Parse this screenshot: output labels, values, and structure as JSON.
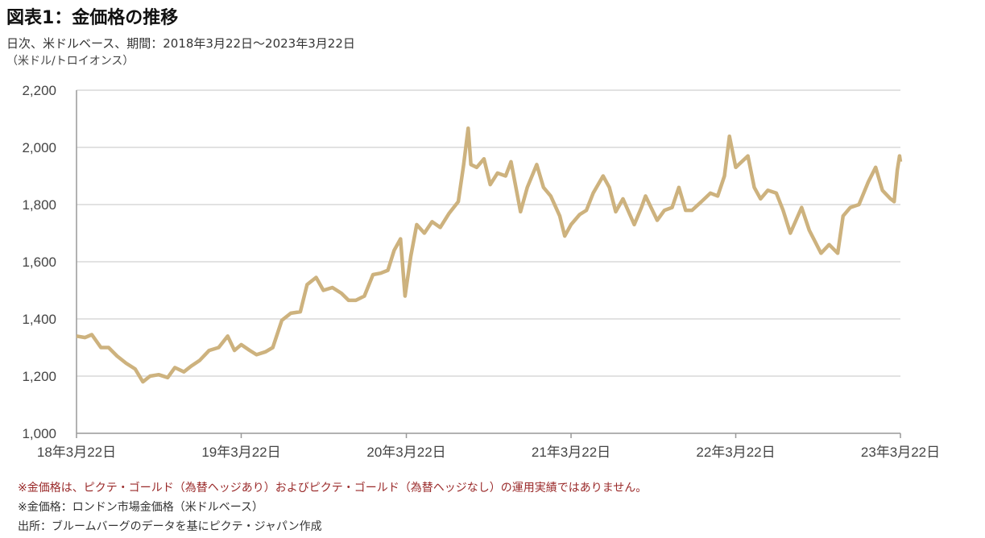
{
  "title": "図表1：金価格の推移",
  "subtitle": "日次、米ドルベース、期間：2018年3月22日～2023年3月22日",
  "unit": "（米ドル/トロイオンス）",
  "notes": [
    "※金価格は、ピクテ・ゴールド（為替ヘッジあり）およびピクテ・ゴールド（為替ヘッジなし）の運用実績ではありません。",
    "※金価格：ロンドン市場金価格（米ドルベース）",
    "出所：ブルームバーグのデータを基にピクテ・ジャパン作成"
  ],
  "colors": {
    "line": "#CDB27E",
    "grid": "#D9D9D9",
    "note_red": "#9A2A2A"
  },
  "chart_data": {
    "type": "line",
    "title": "図表1：金価格の推移",
    "ylabel": "（米ドル/トロイオンス）",
    "ylim": [
      1000,
      2200
    ],
    "yticks": [
      1000,
      1200,
      1400,
      1600,
      1800,
      2000,
      2200
    ],
    "ytick_labels": [
      "1,000",
      "1,200",
      "1,400",
      "1,600",
      "1,800",
      "2,000",
      "2,200"
    ],
    "xlim": [
      "2018-03-22",
      "2023-03-22"
    ],
    "xticks": [
      "2018-03-22",
      "2019-03-22",
      "2020-03-22",
      "2021-03-22",
      "2022-03-22",
      "2023-03-22"
    ],
    "xtick_labels": [
      "18年3月22日",
      "19年3月22日",
      "20年3月22日",
      "21年3月22日",
      "22年3月22日",
      "23年3月22日"
    ],
    "grid": "horizontal",
    "series": [
      {
        "x": [
          "2018-03-22",
          "2018-04-10",
          "2018-04-25",
          "2018-05-15",
          "2018-06-01",
          "2018-06-20",
          "2018-07-10",
          "2018-07-30",
          "2018-08-16",
          "2018-09-01",
          "2018-09-20",
          "2018-10-10",
          "2018-10-26",
          "2018-11-15",
          "2018-12-01",
          "2018-12-20",
          "2019-01-10",
          "2019-01-31",
          "2019-02-20",
          "2019-03-07",
          "2019-03-22",
          "2019-04-10",
          "2019-04-25",
          "2019-05-15",
          "2019-05-31",
          "2019-06-20",
          "2019-07-10",
          "2019-07-31",
          "2019-08-15",
          "2019-09-04",
          "2019-09-20",
          "2019-10-10",
          "2019-10-30",
          "2019-11-15",
          "2019-12-01",
          "2019-12-20",
          "2020-01-08",
          "2020-01-25",
          "2020-02-10",
          "2020-02-24",
          "2020-03-09",
          "2020-03-19",
          "2020-04-01",
          "2020-04-14",
          "2020-05-01",
          "2020-05-18",
          "2020-06-05",
          "2020-06-25",
          "2020-07-15",
          "2020-07-27",
          "2020-08-06",
          "2020-08-12",
          "2020-08-25",
          "2020-09-10",
          "2020-09-24",
          "2020-10-10",
          "2020-10-28",
          "2020-11-09",
          "2020-11-30",
          "2020-12-15",
          "2021-01-05",
          "2021-01-20",
          "2021-02-05",
          "2021-02-25",
          "2021-03-08",
          "2021-03-22",
          "2021-04-10",
          "2021-04-25",
          "2021-05-10",
          "2021-06-01",
          "2021-06-15",
          "2021-06-29",
          "2021-07-15",
          "2021-08-09",
          "2021-08-25",
          "2021-09-03",
          "2021-09-29",
          "2021-10-15",
          "2021-11-01",
          "2021-11-16",
          "2021-12-01",
          "2021-12-15",
          "2022-01-05",
          "2022-01-25",
          "2022-02-10",
          "2022-02-25",
          "2022-03-08",
          "2022-03-22",
          "2022-04-18",
          "2022-05-02",
          "2022-05-16",
          "2022-06-01",
          "2022-06-20",
          "2022-07-05",
          "2022-07-21",
          "2022-08-15",
          "2022-09-01",
          "2022-09-27",
          "2022-10-15",
          "2022-11-03",
          "2022-11-15",
          "2022-12-01",
          "2022-12-20",
          "2023-01-10",
          "2023-01-26",
          "2023-02-10",
          "2023-02-28",
          "2023-03-08",
          "2023-03-15",
          "2023-03-20",
          "2023-03-22"
        ],
        "values": [
          1340,
          1335,
          1345,
          1300,
          1300,
          1270,
          1245,
          1225,
          1180,
          1200,
          1205,
          1195,
          1230,
          1215,
          1235,
          1255,
          1290,
          1300,
          1340,
          1290,
          1310,
          1290,
          1275,
          1285,
          1300,
          1395,
          1420,
          1425,
          1520,
          1545,
          1500,
          1510,
          1490,
          1465,
          1465,
          1480,
          1555,
          1560,
          1570,
          1640,
          1680,
          1480,
          1620,
          1730,
          1700,
          1740,
          1720,
          1770,
          1810,
          1940,
          2067,
          1940,
          1930,
          1960,
          1870,
          1910,
          1900,
          1950,
          1775,
          1860,
          1940,
          1860,
          1830,
          1760,
          1690,
          1730,
          1765,
          1780,
          1840,
          1900,
          1860,
          1775,
          1820,
          1730,
          1790,
          1830,
          1745,
          1780,
          1790,
          1860,
          1780,
          1780,
          1810,
          1840,
          1830,
          1900,
          2039,
          1930,
          1970,
          1860,
          1820,
          1850,
          1840,
          1780,
          1700,
          1790,
          1710,
          1630,
          1660,
          1630,
          1760,
          1790,
          1800,
          1880,
          1930,
          1850,
          1820,
          1810,
          1920,
          1970,
          1950
        ]
      }
    ]
  }
}
